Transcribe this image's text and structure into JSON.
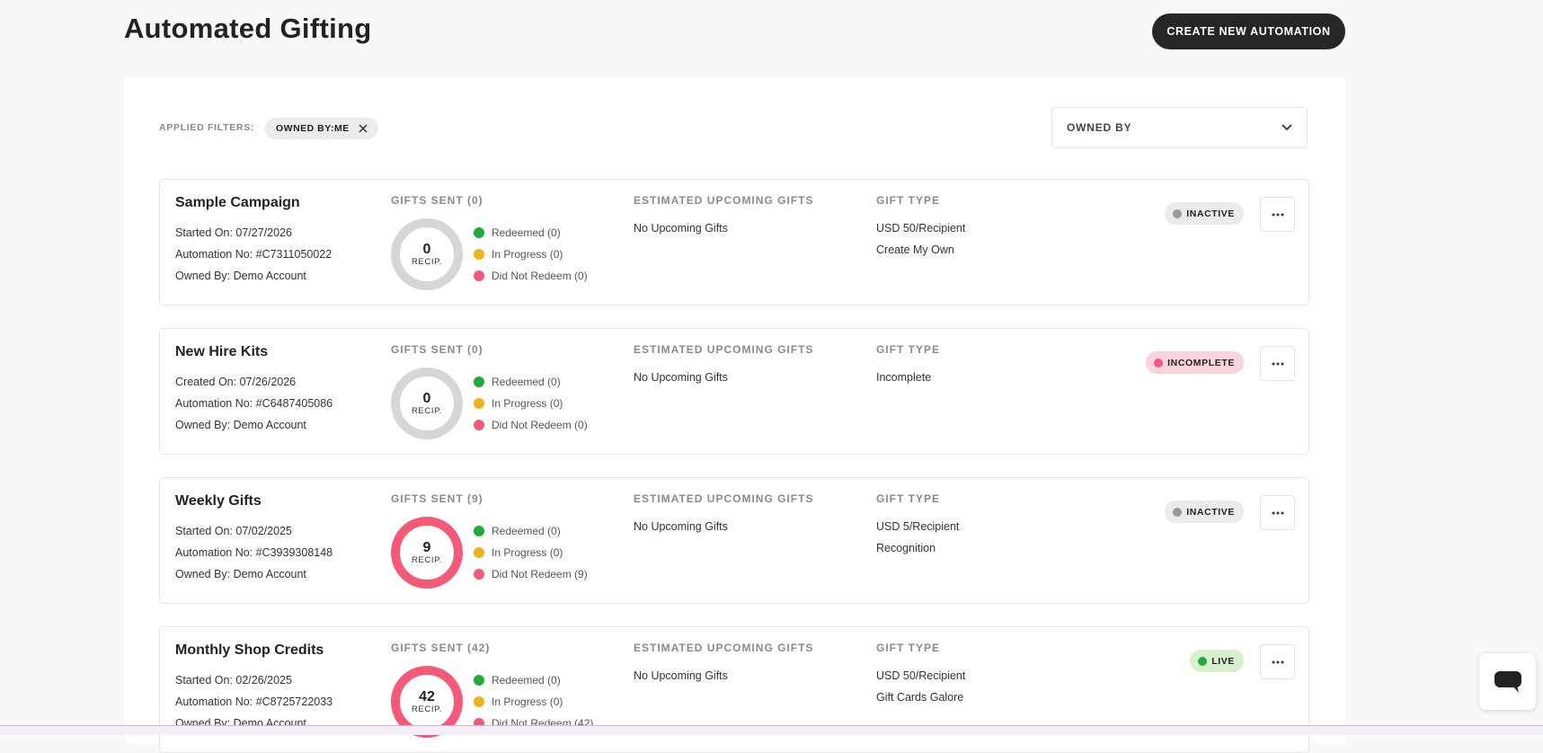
{
  "header": {
    "title": "Automated Gifting",
    "button": "CREATE NEW AUTOMATION"
  },
  "filters": {
    "label": "APPLIED FILTERS:",
    "chip": "OWNED BY:ME",
    "dropdown": "OWNED BY"
  },
  "campaigns": [
    {
      "name": "Sample Campaign",
      "lines": [
        "Started On: 07/27/2026",
        "Automation No: #C7311050022",
        "Owned By: Demo Account"
      ],
      "gifts_sent": "GIFTS SENT (0)",
      "count": "0",
      "unit": "RECIP.",
      "ring_color": "#d6d6d6",
      "legend": [
        "Redeemed (0)",
        "In Progress (0)",
        "Did Not Redeem (0)"
      ],
      "upcoming_label": "ESTIMATED UPCOMING GIFTS",
      "upcoming": "No Upcoming Gifts",
      "gift_type_label": "GIFT TYPE",
      "gift_type": [
        "USD 50/Recipient",
        "Create My Own"
      ],
      "status": "INACTIVE",
      "status_bg": "#ebebeb",
      "status_dot": "#9a9a9a"
    },
    {
      "name": "New Hire Kits",
      "lines": [
        "Created On: 07/26/2026",
        "Automation No: #C6487405086",
        "Owned By: Demo Account"
      ],
      "gifts_sent": "GIFTS SENT (0)",
      "count": "0",
      "unit": "RECIP.",
      "ring_color": "#d6d6d6",
      "legend": [
        "Redeemed (0)",
        "In Progress (0)",
        "Did Not Redeem (0)"
      ],
      "upcoming_label": "ESTIMATED UPCOMING GIFTS",
      "upcoming": "No Upcoming Gifts",
      "gift_type_label": "GIFT TYPE",
      "gift_type": [
        "Incomplete"
      ],
      "status": "INCOMPLETE",
      "status_bg": "#fbd3dc",
      "status_dot": "#f2577a"
    },
    {
      "name": "Weekly Gifts",
      "lines": [
        "Started On: 07/02/2025",
        "Automation No: #C3939308148",
        "Owned By: Demo Account"
      ],
      "gifts_sent": "GIFTS SENT (9)",
      "count": "9",
      "unit": "RECIP.",
      "ring_color": "#f45a78",
      "legend": [
        "Redeemed (0)",
        "In Progress (0)",
        "Did Not Redeem (9)"
      ],
      "upcoming_label": "ESTIMATED UPCOMING GIFTS",
      "upcoming": "No Upcoming Gifts",
      "gift_type_label": "GIFT TYPE",
      "gift_type": [
        "USD 5/Recipient",
        "Recognition"
      ],
      "status": "INACTIVE",
      "status_bg": "#ebebeb",
      "status_dot": "#9a9a9a"
    },
    {
      "name": "Monthly Shop Credits",
      "lines": [
        "Started On: 02/26/2025",
        "Automation No: #C8725722033",
        "Owned By: Demo Account"
      ],
      "gifts_sent": "GIFTS SENT (42)",
      "count": "42",
      "unit": "RECIP.",
      "ring_color": "#f45a78",
      "legend": [
        "Redeemed (0)",
        "In Progress (0)",
        "Did Not Redeem (42)"
      ],
      "upcoming_label": "ESTIMATED UPCOMING GIFTS",
      "upcoming": "No Upcoming Gifts",
      "gift_type_label": "GIFT TYPE",
      "gift_type": [
        "USD 50/Recipient",
        "Gift Cards Galore"
      ],
      "status": "LIVE",
      "status_bg": "#d9f0cf",
      "status_dot": "#1faa3a"
    }
  ]
}
